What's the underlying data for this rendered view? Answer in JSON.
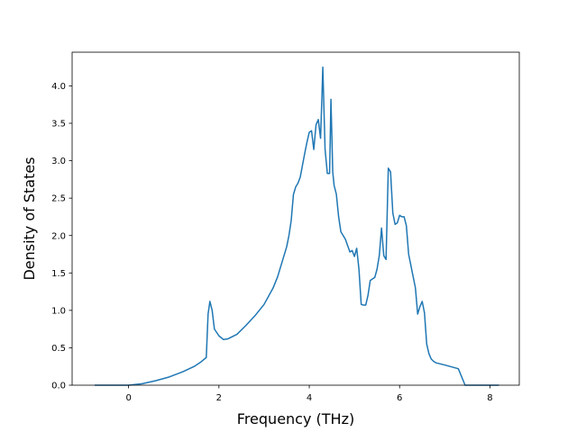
{
  "chart_data": {
    "type": "line",
    "title": "",
    "xlabel": "Frequency (THz)",
    "ylabel": "Density of States",
    "xlim": [
      -1.25,
      8.65
    ],
    "ylim": [
      0.0,
      4.45
    ],
    "xticks": [
      0,
      2,
      4,
      6,
      8
    ],
    "xtick_labels": [
      "0",
      "2",
      "4",
      "6",
      "8"
    ],
    "yticks": [
      0.0,
      0.5,
      1.0,
      1.5,
      2.0,
      2.5,
      3.0,
      3.5,
      4.0
    ],
    "ytick_labels": [
      "0.0",
      "0.5",
      "1.0",
      "1.5",
      "2.0",
      "2.5",
      "3.0",
      "3.5",
      "4.0"
    ],
    "grid": false,
    "colors": {
      "line": "#1f77b4"
    },
    "series": [
      {
        "x": [
          -0.75,
          0.0,
          0.3,
          0.6,
          0.9,
          1.2,
          1.45,
          1.6,
          1.72,
          1.76,
          1.8,
          1.85,
          1.9,
          2.0,
          2.1,
          2.2,
          2.4,
          2.6,
          2.8,
          3.0,
          3.2,
          3.3,
          3.4,
          3.5,
          3.55,
          3.6,
          3.65,
          3.7,
          3.75,
          3.8,
          3.9,
          3.95,
          4.0,
          4.05,
          4.1,
          4.15,
          4.2,
          4.25,
          4.28,
          4.3,
          4.35,
          4.4,
          4.45,
          4.48,
          4.52,
          4.55,
          4.6,
          4.65,
          4.7,
          4.8,
          4.9,
          4.95,
          5.0,
          5.05,
          5.1,
          5.15,
          5.2,
          5.25,
          5.3,
          5.35,
          5.45,
          5.5,
          5.55,
          5.6,
          5.65,
          5.7,
          5.75,
          5.8,
          5.85,
          5.9,
          5.95,
          6.0,
          6.05,
          6.1,
          6.15,
          6.2,
          6.25,
          6.3,
          6.35,
          6.4,
          6.45,
          6.5,
          6.55,
          6.6,
          6.65,
          6.7,
          6.75,
          6.8,
          7.0,
          7.3,
          7.45,
          7.6,
          8.2
        ],
        "y": [
          0.0,
          0.0,
          0.02,
          0.06,
          0.11,
          0.18,
          0.25,
          0.31,
          0.37,
          0.95,
          1.12,
          1.0,
          0.75,
          0.66,
          0.61,
          0.62,
          0.68,
          0.8,
          0.93,
          1.08,
          1.3,
          1.45,
          1.65,
          1.85,
          2.0,
          2.2,
          2.55,
          2.65,
          2.7,
          2.78,
          3.1,
          3.25,
          3.38,
          3.4,
          3.15,
          3.48,
          3.55,
          3.3,
          3.85,
          4.25,
          3.15,
          2.83,
          2.83,
          3.82,
          2.85,
          2.67,
          2.55,
          2.25,
          2.05,
          1.95,
          1.78,
          1.8,
          1.72,
          1.83,
          1.55,
          1.08,
          1.07,
          1.07,
          1.2,
          1.4,
          1.44,
          1.55,
          1.73,
          2.1,
          1.73,
          1.68,
          2.9,
          2.85,
          2.3,
          2.15,
          2.17,
          2.27,
          2.25,
          2.25,
          2.13,
          1.75,
          1.6,
          1.45,
          1.3,
          0.95,
          1.05,
          1.12,
          0.97,
          0.55,
          0.42,
          0.35,
          0.32,
          0.3,
          0.27,
          0.22,
          0.0,
          0.0,
          0.0
        ]
      }
    ]
  }
}
